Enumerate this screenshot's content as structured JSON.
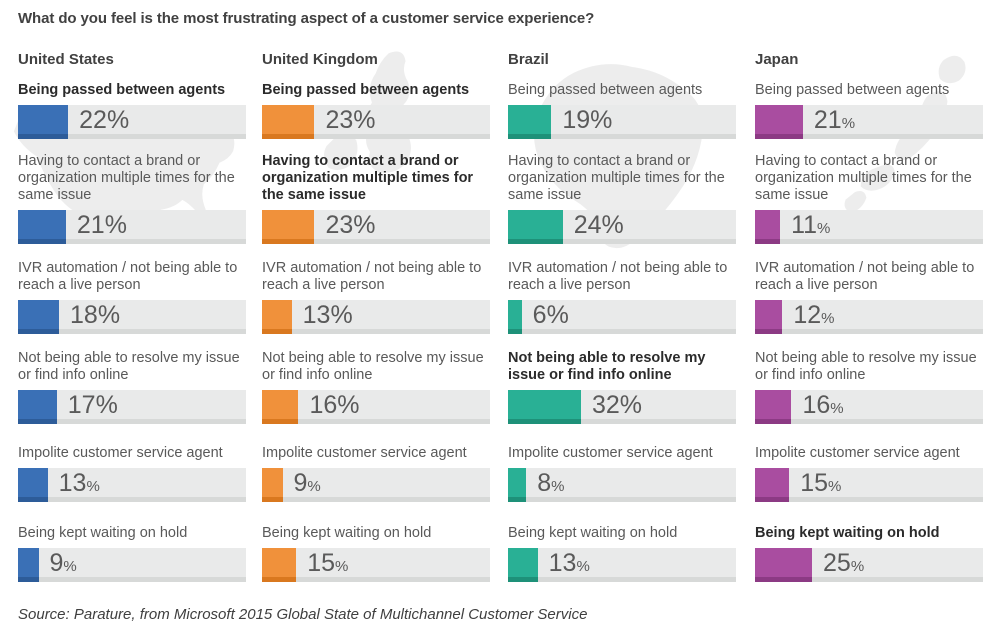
{
  "title": "What do you feel is the most frustrating aspect of a customer service experience?",
  "source": "Source: Parature, from Microsoft 2015 Global State of Multichannel Customer Service",
  "chart_data": {
    "type": "bar",
    "orientation": "horizontal",
    "unit": "%",
    "axis_max": 100,
    "grid": false,
    "legend": "none (small multiples by country)",
    "title": "What do you feel is the most frustrating aspect of a customer service experience?",
    "categories": [
      "Being passed between agents",
      "Having to contact a brand or organization multiple times for the same issue",
      "IVR automation / not being able to reach a live person",
      "Not being able to resolve my issue or find info online",
      "Impolite customer service agent",
      "Being kept waiting on hold"
    ],
    "series": [
      {
        "name": "United States",
        "color": "#3a70b6",
        "color_dark": "#2d5c99",
        "values": [
          22,
          21,
          18,
          17,
          13,
          9
        ]
      },
      {
        "name": "United Kingdom",
        "color": "#f0913b",
        "color_dark": "#d9781f",
        "values": [
          23,
          23,
          13,
          16,
          9,
          15
        ]
      },
      {
        "name": "Brazil",
        "color": "#29b095",
        "color_dark": "#1e9179",
        "values": [
          19,
          24,
          6,
          32,
          8,
          13
        ]
      },
      {
        "name": "Japan",
        "color": "#a94da0",
        "color_dark": "#8c3a84",
        "values": [
          21,
          11,
          12,
          16,
          15,
          25
        ]
      }
    ],
    "bold_label_indices": [
      [
        0
      ],
      [
        0,
        1
      ],
      [
        3
      ],
      [
        5
      ]
    ],
    "small_percent_indices": [
      [
        4,
        5
      ],
      [
        4,
        5
      ],
      [
        4,
        5
      ],
      [
        0,
        1,
        2,
        3,
        4,
        5
      ]
    ]
  },
  "style": {
    "track_color": "#e9eaea",
    "track_shadow_color": "#d7d9d8",
    "map_silhouette_color": "#ededed",
    "text_color": "#595959",
    "bold_text_color": "#2b2b2b"
  }
}
